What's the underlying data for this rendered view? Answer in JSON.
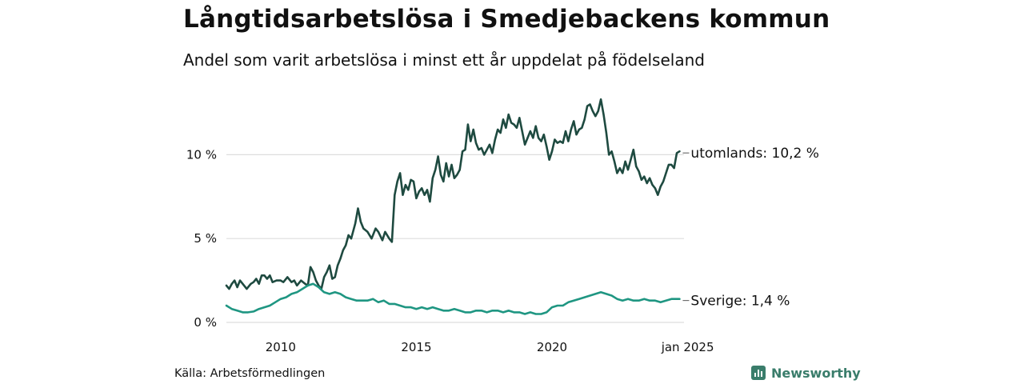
{
  "title": "Långtidsarbetslösa i Smedjebackens kommun",
  "subtitle": "Andel som varit arbetslösa i minst ett år uppdelat på födelseland",
  "source": "Källa: Arbetsförmedlingen",
  "brand": {
    "name": "Newsworthy",
    "icon": "newsworthy-logo-icon",
    "color": "#3a7d6b"
  },
  "chart_data": {
    "type": "line",
    "title": "Långtidsarbetslösa i Smedjebackens kommun",
    "subtitle": "Andel som varit arbetslösa i minst ett år uppdelat på födelseland",
    "xlabel": "",
    "ylabel": "",
    "x_ticks": [
      {
        "x": 2010,
        "label": "2010"
      },
      {
        "x": 2015,
        "label": "2015"
      },
      {
        "x": 2020,
        "label": "2020"
      },
      {
        "x": 2025,
        "label": "jan 2025"
      }
    ],
    "y_ticks": [
      {
        "y": 0,
        "label": "0 %"
      },
      {
        "y": 5,
        "label": "5 %"
      },
      {
        "y": 10,
        "label": "10 %"
      }
    ],
    "xlim": [
      2008,
      2025.1
    ],
    "ylim": [
      0,
      13.5
    ],
    "grid": "horizontal",
    "series": [
      {
        "name": "utomlands",
        "end_label": "utomlands: 10,2 %",
        "color": "#1e4a40",
        "points": [
          [
            2008.0,
            2.2
          ],
          [
            2008.1,
            2.0
          ],
          [
            2008.2,
            2.3
          ],
          [
            2008.3,
            2.5
          ],
          [
            2008.4,
            2.1
          ],
          [
            2008.5,
            2.5
          ],
          [
            2008.6,
            2.3
          ],
          [
            2008.75,
            2.0
          ],
          [
            2008.9,
            2.3
          ],
          [
            2009.0,
            2.4
          ],
          [
            2009.1,
            2.6
          ],
          [
            2009.2,
            2.3
          ],
          [
            2009.3,
            2.8
          ],
          [
            2009.4,
            2.8
          ],
          [
            2009.5,
            2.6
          ],
          [
            2009.6,
            2.8
          ],
          [
            2009.7,
            2.4
          ],
          [
            2009.85,
            2.5
          ],
          [
            2010.0,
            2.5
          ],
          [
            2010.1,
            2.4
          ],
          [
            2010.25,
            2.7
          ],
          [
            2010.4,
            2.4
          ],
          [
            2010.5,
            2.5
          ],
          [
            2010.6,
            2.2
          ],
          [
            2010.75,
            2.5
          ],
          [
            2010.9,
            2.3
          ],
          [
            2011.0,
            2.2
          ],
          [
            2011.1,
            3.3
          ],
          [
            2011.2,
            3.0
          ],
          [
            2011.3,
            2.5
          ],
          [
            2011.4,
            2.2
          ],
          [
            2011.5,
            2.0
          ],
          [
            2011.6,
            2.7
          ],
          [
            2011.7,
            3.0
          ],
          [
            2011.8,
            3.4
          ],
          [
            2011.9,
            2.6
          ],
          [
            2012.0,
            2.7
          ],
          [
            2012.1,
            3.4
          ],
          [
            2012.2,
            3.8
          ],
          [
            2012.3,
            4.3
          ],
          [
            2012.4,
            4.6
          ],
          [
            2012.5,
            5.2
          ],
          [
            2012.6,
            5.0
          ],
          [
            2012.75,
            5.9
          ],
          [
            2012.85,
            6.8
          ],
          [
            2012.95,
            6.0
          ],
          [
            2013.05,
            5.6
          ],
          [
            2013.2,
            5.4
          ],
          [
            2013.35,
            5.0
          ],
          [
            2013.5,
            5.6
          ],
          [
            2013.6,
            5.4
          ],
          [
            2013.75,
            4.9
          ],
          [
            2013.85,
            5.4
          ],
          [
            2014.0,
            5.0
          ],
          [
            2014.1,
            4.8
          ],
          [
            2014.2,
            7.6
          ],
          [
            2014.3,
            8.4
          ],
          [
            2014.4,
            8.9
          ],
          [
            2014.5,
            7.6
          ],
          [
            2014.6,
            8.2
          ],
          [
            2014.7,
            7.9
          ],
          [
            2014.8,
            8.5
          ],
          [
            2014.9,
            8.4
          ],
          [
            2015.0,
            7.4
          ],
          [
            2015.1,
            7.8
          ],
          [
            2015.2,
            8.0
          ],
          [
            2015.3,
            7.6
          ],
          [
            2015.4,
            7.9
          ],
          [
            2015.5,
            7.2
          ],
          [
            2015.6,
            8.6
          ],
          [
            2015.7,
            9.1
          ],
          [
            2015.8,
            9.9
          ],
          [
            2015.9,
            8.8
          ],
          [
            2016.0,
            8.4
          ],
          [
            2016.1,
            9.5
          ],
          [
            2016.2,
            8.7
          ],
          [
            2016.3,
            9.4
          ],
          [
            2016.4,
            8.6
          ],
          [
            2016.5,
            8.8
          ],
          [
            2016.6,
            9.1
          ],
          [
            2016.7,
            10.2
          ],
          [
            2016.8,
            10.3
          ],
          [
            2016.9,
            11.8
          ],
          [
            2017.0,
            10.8
          ],
          [
            2017.1,
            11.5
          ],
          [
            2017.2,
            10.7
          ],
          [
            2017.3,
            10.3
          ],
          [
            2017.4,
            10.4
          ],
          [
            2017.5,
            10.0
          ],
          [
            2017.6,
            10.3
          ],
          [
            2017.7,
            10.6
          ],
          [
            2017.8,
            10.1
          ],
          [
            2017.9,
            10.9
          ],
          [
            2018.0,
            11.5
          ],
          [
            2018.1,
            11.3
          ],
          [
            2018.2,
            12.1
          ],
          [
            2018.3,
            11.6
          ],
          [
            2018.4,
            12.4
          ],
          [
            2018.5,
            11.9
          ],
          [
            2018.6,
            11.8
          ],
          [
            2018.7,
            11.6
          ],
          [
            2018.8,
            12.2
          ],
          [
            2018.9,
            11.4
          ],
          [
            2019.0,
            10.6
          ],
          [
            2019.1,
            11.0
          ],
          [
            2019.2,
            11.4
          ],
          [
            2019.3,
            11.0
          ],
          [
            2019.4,
            11.7
          ],
          [
            2019.5,
            11.0
          ],
          [
            2019.6,
            10.8
          ],
          [
            2019.7,
            11.2
          ],
          [
            2019.8,
            10.5
          ],
          [
            2019.9,
            9.7
          ],
          [
            2020.0,
            10.2
          ],
          [
            2020.1,
            10.9
          ],
          [
            2020.2,
            10.7
          ],
          [
            2020.3,
            10.8
          ],
          [
            2020.4,
            10.7
          ],
          [
            2020.5,
            11.4
          ],
          [
            2020.6,
            10.8
          ],
          [
            2020.7,
            11.5
          ],
          [
            2020.8,
            12.0
          ],
          [
            2020.9,
            11.2
          ],
          [
            2021.0,
            11.5
          ],
          [
            2021.1,
            11.6
          ],
          [
            2021.2,
            12.1
          ],
          [
            2021.3,
            12.9
          ],
          [
            2021.4,
            13.0
          ],
          [
            2021.5,
            12.6
          ],
          [
            2021.6,
            12.3
          ],
          [
            2021.7,
            12.6
          ],
          [
            2021.8,
            13.3
          ],
          [
            2021.9,
            12.4
          ],
          [
            2022.0,
            11.3
          ],
          [
            2022.1,
            10.0
          ],
          [
            2022.2,
            10.2
          ],
          [
            2022.3,
            9.6
          ],
          [
            2022.4,
            8.9
          ],
          [
            2022.5,
            9.2
          ],
          [
            2022.6,
            8.9
          ],
          [
            2022.7,
            9.6
          ],
          [
            2022.8,
            9.1
          ],
          [
            2022.9,
            9.7
          ],
          [
            2023.0,
            10.3
          ],
          [
            2023.1,
            9.3
          ],
          [
            2023.2,
            9.0
          ],
          [
            2023.3,
            8.5
          ],
          [
            2023.4,
            8.7
          ],
          [
            2023.5,
            8.3
          ],
          [
            2023.6,
            8.6
          ],
          [
            2023.7,
            8.2
          ],
          [
            2023.8,
            8.0
          ],
          [
            2023.9,
            7.6
          ],
          [
            2024.0,
            8.1
          ],
          [
            2024.1,
            8.4
          ],
          [
            2024.2,
            8.9
          ],
          [
            2024.3,
            9.4
          ],
          [
            2024.4,
            9.4
          ],
          [
            2024.5,
            9.2
          ],
          [
            2024.6,
            10.1
          ],
          [
            2024.7,
            10.2
          ]
        ]
      },
      {
        "name": "Sverige",
        "end_label": "Sverige:  1,4 %",
        "color": "#1f9682",
        "points": [
          [
            2008.0,
            1.0
          ],
          [
            2008.2,
            0.8
          ],
          [
            2008.4,
            0.7
          ],
          [
            2008.6,
            0.6
          ],
          [
            2008.8,
            0.6
          ],
          [
            2009.0,
            0.65
          ],
          [
            2009.2,
            0.8
          ],
          [
            2009.4,
            0.9
          ],
          [
            2009.6,
            1.0
          ],
          [
            2009.8,
            1.2
          ],
          [
            2010.0,
            1.4
          ],
          [
            2010.2,
            1.5
          ],
          [
            2010.4,
            1.7
          ],
          [
            2010.6,
            1.8
          ],
          [
            2010.8,
            2.0
          ],
          [
            2011.0,
            2.2
          ],
          [
            2011.2,
            2.3
          ],
          [
            2011.4,
            2.1
          ],
          [
            2011.6,
            1.8
          ],
          [
            2011.8,
            1.7
          ],
          [
            2012.0,
            1.8
          ],
          [
            2012.2,
            1.7
          ],
          [
            2012.4,
            1.5
          ],
          [
            2012.6,
            1.4
          ],
          [
            2012.8,
            1.3
          ],
          [
            2013.0,
            1.3
          ],
          [
            2013.2,
            1.3
          ],
          [
            2013.4,
            1.4
          ],
          [
            2013.6,
            1.2
          ],
          [
            2013.8,
            1.3
          ],
          [
            2014.0,
            1.1
          ],
          [
            2014.2,
            1.1
          ],
          [
            2014.4,
            1.0
          ],
          [
            2014.6,
            0.9
          ],
          [
            2014.8,
            0.9
          ],
          [
            2015.0,
            0.8
          ],
          [
            2015.2,
            0.9
          ],
          [
            2015.4,
            0.8
          ],
          [
            2015.6,
            0.9
          ],
          [
            2015.8,
            0.8
          ],
          [
            2016.0,
            0.7
          ],
          [
            2016.2,
            0.7
          ],
          [
            2016.4,
            0.8
          ],
          [
            2016.6,
            0.7
          ],
          [
            2016.8,
            0.6
          ],
          [
            2017.0,
            0.6
          ],
          [
            2017.2,
            0.7
          ],
          [
            2017.4,
            0.7
          ],
          [
            2017.6,
            0.6
          ],
          [
            2017.8,
            0.7
          ],
          [
            2018.0,
            0.7
          ],
          [
            2018.2,
            0.6
          ],
          [
            2018.4,
            0.7
          ],
          [
            2018.6,
            0.6
          ],
          [
            2018.8,
            0.6
          ],
          [
            2019.0,
            0.5
          ],
          [
            2019.2,
            0.6
          ],
          [
            2019.4,
            0.5
          ],
          [
            2019.6,
            0.5
          ],
          [
            2019.8,
            0.6
          ],
          [
            2020.0,
            0.9
          ],
          [
            2020.2,
            1.0
          ],
          [
            2020.4,
            1.0
          ],
          [
            2020.6,
            1.2
          ],
          [
            2020.8,
            1.3
          ],
          [
            2021.0,
            1.4
          ],
          [
            2021.2,
            1.5
          ],
          [
            2021.4,
            1.6
          ],
          [
            2021.6,
            1.7
          ],
          [
            2021.8,
            1.8
          ],
          [
            2022.0,
            1.7
          ],
          [
            2022.2,
            1.6
          ],
          [
            2022.4,
            1.4
          ],
          [
            2022.6,
            1.3
          ],
          [
            2022.8,
            1.4
          ],
          [
            2023.0,
            1.3
          ],
          [
            2023.2,
            1.3
          ],
          [
            2023.4,
            1.4
          ],
          [
            2023.6,
            1.3
          ],
          [
            2023.8,
            1.3
          ],
          [
            2024.0,
            1.2
          ],
          [
            2024.2,
            1.3
          ],
          [
            2024.4,
            1.4
          ],
          [
            2024.6,
            1.4
          ],
          [
            2024.7,
            1.4
          ]
        ]
      }
    ]
  }
}
